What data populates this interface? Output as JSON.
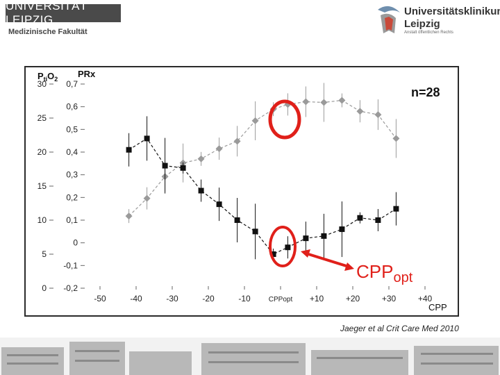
{
  "header": {
    "university": "UNIVERSITÄT LEIPZIG",
    "faculty": "Medizinische Fakultät",
    "clinic_line1": "Universitätsklinikum",
    "clinic_line2": "Leipzig",
    "clinic_line3": "Anstalt öffentlichen Rechts"
  },
  "citation": "Jaeger et al Crit Care Med 2010",
  "annotations": {
    "n_label": "n=28",
    "cpp_opt_big": "CPP",
    "cpp_opt_big_sub": "opt"
  },
  "colors": {
    "grey_series": "#9a9a9a",
    "black_series": "#111111",
    "highlight": "#e0201a"
  },
  "chart_data": {
    "type": "line",
    "x": [
      "-50",
      "-40",
      "-30",
      "-20",
      "-10",
      "CPPopt",
      "+10",
      "+20",
      "+30",
      "+40"
    ],
    "xlabel": "CPP",
    "ylabel_left": "PtiO2",
    "ylabel_left_parts": {
      "base": "P",
      "sub1": "ti",
      "mid": "O",
      "sub2": "2"
    },
    "ylabel_right": "PRx",
    "yticks_left": [
      "30",
      "25",
      "20",
      "15",
      "10",
      "5",
      "0"
    ],
    "yticks_right": [
      "0,7",
      "0,6",
      "0,5",
      "0,4",
      "0,3",
      "0,2",
      "0,1",
      "0",
      "-0,1",
      "-0,2"
    ],
    "y_left_range": [
      0,
      30
    ],
    "y_right_range": [
      -0.2,
      0.7
    ],
    "grid": false,
    "series": [
      {
        "style": "grey-diamond-dashed",
        "x": [
          -42,
          -37,
          -32,
          -27,
          -22,
          -17,
          -12,
          -7,
          -2,
          2,
          7,
          12,
          17,
          22,
          27,
          32
        ],
        "y_left": [
          10.6,
          13.2,
          16.4,
          18.4,
          19.0,
          20.5,
          21.6,
          24.6,
          26.3,
          27.0,
          27.4,
          27.3,
          27.6,
          26.0,
          25.5,
          22.0
        ]
      },
      {
        "style": "black-square-dashed",
        "x": [
          -42,
          -37,
          -32,
          -27,
          -22,
          -17,
          -12,
          -7,
          -2,
          2,
          7,
          12,
          17,
          22,
          27,
          32
        ],
        "y_right": [
          0.41,
          0.46,
          0.34,
          0.33,
          0.23,
          0.17,
          0.1,
          0.05,
          -0.05,
          -0.02,
          0.02,
          0.03,
          0.06,
          0.11,
          0.1,
          0.15
        ]
      }
    ],
    "highlight_points": [
      "peak of PtiO2 curve at CPPopt",
      "minimum of PRx curve at CPPopt"
    ]
  }
}
